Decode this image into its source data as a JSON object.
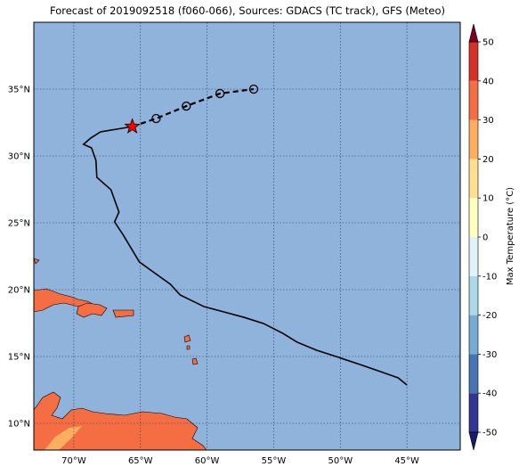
{
  "chart_data": {
    "type": "map",
    "title": "Forecast of 2019092518 (f060-066), Sources: GDACS (TC track), GFS (Meteo)",
    "xlim": [
      -73,
      -41
    ],
    "ylim": [
      8,
      40
    ],
    "xticks": [
      {
        "value": -70,
        "label": "70°W"
      },
      {
        "value": -65,
        "label": "65°W"
      },
      {
        "value": -60,
        "label": "60°W"
      },
      {
        "value": -55,
        "label": "55°W"
      },
      {
        "value": -50,
        "label": "50°W"
      },
      {
        "value": -45,
        "label": "45°W"
      }
    ],
    "yticks": [
      {
        "value": 10,
        "label": "10°N"
      },
      {
        "value": 15,
        "label": "15°N"
      },
      {
        "value": 20,
        "label": "20°N"
      },
      {
        "value": 25,
        "label": "25°N"
      },
      {
        "value": 30,
        "label": "30°N"
      },
      {
        "value": 35,
        "label": "35°N"
      }
    ],
    "grid": true,
    "ocean_color": "#8fb3da",
    "track": {
      "color": "#000000",
      "x": [
        -45.0,
        -45.66,
        -46.6,
        -48.33,
        -50.12,
        -51.78,
        -53.24,
        -54.31,
        -55.77,
        -57.23,
        -60.23,
        -62.02,
        -62.75,
        -64.15,
        -65.08,
        -66.28,
        -66.94,
        -66.61,
        -67.21,
        -68.27,
        -68.34,
        -68.67,
        -69.27,
        -68.74,
        -68.0,
        -65.61
      ],
      "y": [
        12.87,
        13.4,
        13.73,
        14.33,
        14.93,
        15.47,
        16.07,
        16.73,
        17.47,
        17.93,
        18.73,
        19.6,
        20.4,
        21.4,
        22.07,
        24.07,
        25.07,
        25.8,
        27.47,
        28.4,
        29.67,
        30.6,
        30.87,
        31.33,
        31.8,
        32.2
      ]
    },
    "forecast": {
      "color": "#000000",
      "x": [
        -65.61,
        -63.82,
        -61.56,
        -59.03,
        -56.5
      ],
      "y": [
        32.2,
        32.8,
        33.73,
        34.67,
        35.0
      ]
    },
    "current_color": "#ff0000",
    "colorbar": {
      "label": "Max Temperature (°C)",
      "ticks": [
        -50,
        -40,
        -30,
        -20,
        -10,
        0,
        10,
        20,
        30,
        40,
        50
      ],
      "colors": [
        "#313695",
        "#4575b4",
        "#74add1",
        "#abd9e9",
        "#e0f3f8",
        "#ffffbf",
        "#fee090",
        "#fdae61",
        "#f46d43",
        "#d73027"
      ],
      "under_color": "#1a1a6e",
      "over_color": "#7f0026"
    }
  }
}
